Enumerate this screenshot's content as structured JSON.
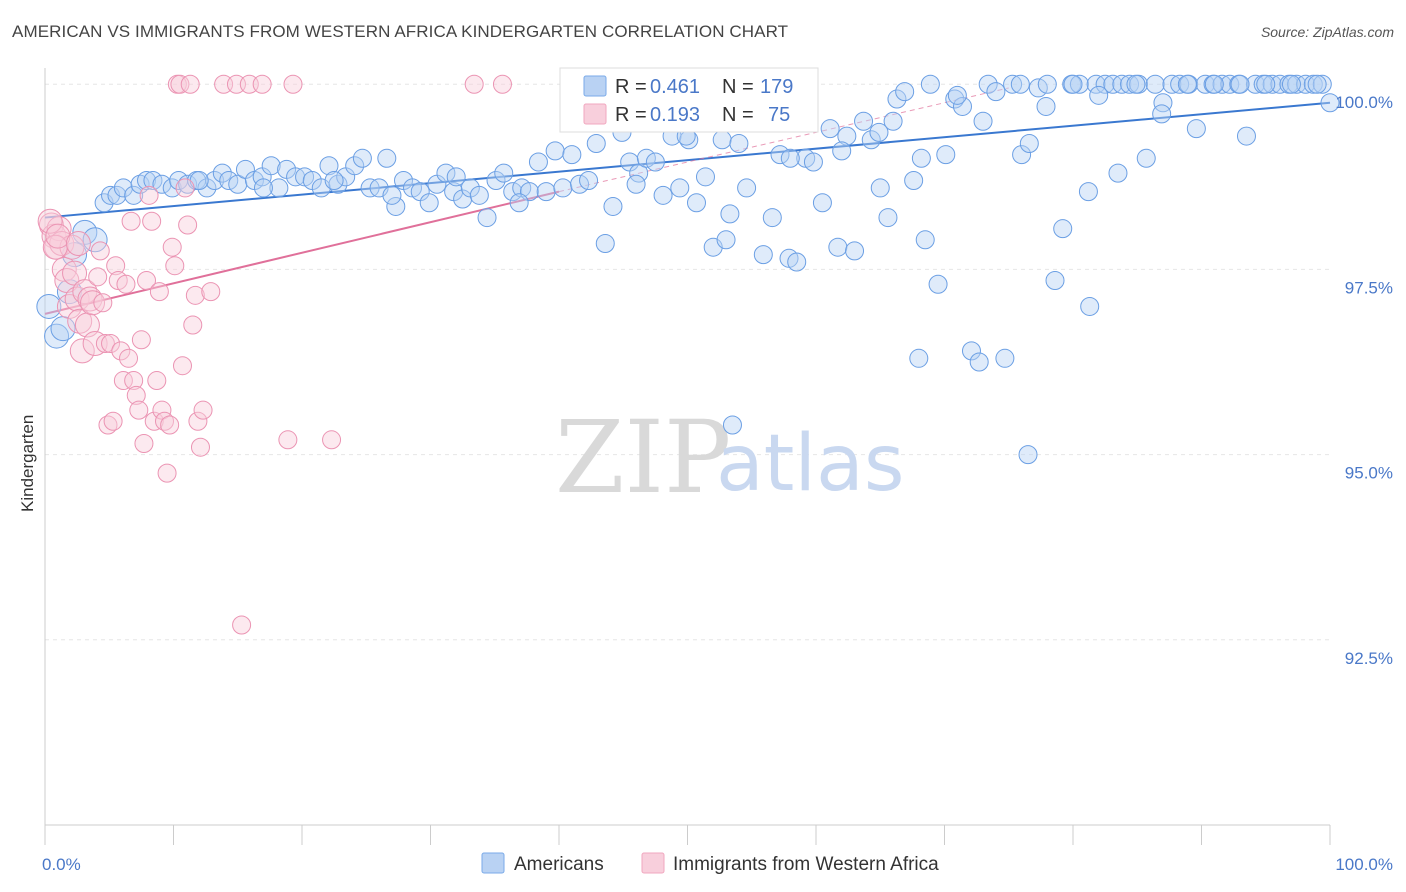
{
  "title": "AMERICAN VS IMMIGRANTS FROM WESTERN AFRICA KINDERGARTEN CORRELATION CHART",
  "source": "Source: ZipAtlas.com",
  "watermark": {
    "zip": "ZIP",
    "atlas": "atlas"
  },
  "legend_top": [
    {
      "r_label": "R = ",
      "r_value": "0.461",
      "n_label": "N = ",
      "n_value": "179",
      "color": "#7aaae8"
    },
    {
      "r_label": "R = ",
      "r_value": "0.193",
      "n_label": "N = ",
      "n_value": "75",
      "color": "#f1a7bf"
    }
  ],
  "legend_bottom": [
    {
      "label": "Americans",
      "color": "#7aaae8"
    },
    {
      "label": "Immigrants from Western Africa",
      "color": "#f1a7bf"
    }
  ],
  "chart_data": {
    "type": "scatter",
    "title": "AMERICAN VS IMMIGRANTS FROM WESTERN AFRICA KINDERGARTEN CORRELATION CHART",
    "ylabel": "Kindergarten",
    "xlabel": "",
    "xlim": [
      0,
      100
    ],
    "ylim": [
      90.0,
      100.3
    ],
    "x_tick_labels": [
      "0.0%",
      "100.0%"
    ],
    "y_ticks": [
      92.5,
      95.0,
      97.5,
      100.0
    ],
    "y_tick_labels": [
      "92.5%",
      "95.0%",
      "97.5%",
      "100.0%"
    ],
    "grid": true,
    "legend_placement": "top-center",
    "series": [
      {
        "name": "Americans",
        "color": "#7aaae8",
        "line_color": "#3a78d0",
        "trend": {
          "x": [
            0,
            100
          ],
          "y": [
            98.2,
            99.75
          ]
        },
        "points": [
          [
            0.3,
            97.0
          ],
          [
            0.9,
            96.6
          ],
          [
            1.4,
            96.7
          ],
          [
            1.9,
            97.2
          ],
          [
            2.3,
            97.7
          ],
          [
            3.1,
            98.0
          ],
          [
            3.9,
            97.9
          ],
          [
            4.6,
            98.4
          ],
          [
            5.1,
            98.5
          ],
          [
            5.6,
            98.5
          ],
          [
            6.1,
            98.6
          ],
          [
            6.9,
            98.5
          ],
          [
            7.4,
            98.65
          ],
          [
            7.9,
            98.7
          ],
          [
            8.4,
            98.7
          ],
          [
            9.1,
            98.65
          ],
          [
            9.9,
            98.6
          ],
          [
            10.4,
            98.7
          ],
          [
            11.1,
            98.65
          ],
          [
            11.8,
            98.7
          ],
          [
            12.6,
            98.6
          ],
          [
            13.2,
            98.7
          ],
          [
            13.8,
            98.8
          ],
          [
            14.3,
            98.7
          ],
          [
            15.0,
            98.65
          ],
          [
            15.6,
            98.85
          ],
          [
            16.3,
            98.7
          ],
          [
            16.9,
            98.75
          ],
          [
            17.6,
            98.9
          ],
          [
            18.2,
            98.6
          ],
          [
            18.8,
            98.85
          ],
          [
            19.5,
            98.75
          ],
          [
            20.2,
            98.75
          ],
          [
            20.8,
            98.7
          ],
          [
            21.5,
            98.6
          ],
          [
            22.1,
            98.9
          ],
          [
            22.8,
            98.65
          ],
          [
            23.4,
            98.75
          ],
          [
            24.1,
            98.9
          ],
          [
            24.7,
            99.0
          ],
          [
            25.3,
            98.6
          ],
          [
            26.0,
            98.6
          ],
          [
            26.6,
            99.0
          ],
          [
            27.3,
            98.35
          ],
          [
            27.9,
            98.7
          ],
          [
            28.6,
            98.6
          ],
          [
            29.2,
            98.55
          ],
          [
            29.9,
            98.4
          ],
          [
            30.5,
            98.65
          ],
          [
            31.2,
            98.8
          ],
          [
            31.8,
            98.55
          ],
          [
            32.5,
            98.45
          ],
          [
            33.1,
            98.6
          ],
          [
            33.8,
            98.5
          ],
          [
            34.4,
            98.2
          ],
          [
            35.1,
            98.7
          ],
          [
            35.7,
            98.8
          ],
          [
            36.4,
            98.55
          ],
          [
            37.1,
            98.6
          ],
          [
            37.7,
            98.55
          ],
          [
            38.4,
            98.95
          ],
          [
            39.0,
            98.55
          ],
          [
            39.7,
            99.1
          ],
          [
            40.3,
            98.6
          ],
          [
            41.0,
            99.05
          ],
          [
            41.6,
            98.65
          ],
          [
            42.3,
            98.7
          ],
          [
            42.9,
            99.2
          ],
          [
            43.6,
            97.85
          ],
          [
            44.2,
            98.35
          ],
          [
            44.9,
            99.35
          ],
          [
            45.5,
            98.95
          ],
          [
            46.2,
            98.8
          ],
          [
            46.8,
            99.0
          ],
          [
            47.5,
            98.95
          ],
          [
            48.1,
            98.5
          ],
          [
            48.8,
            99.3
          ],
          [
            49.4,
            98.6
          ],
          [
            50.1,
            99.25
          ],
          [
            50.7,
            98.4
          ],
          [
            51.4,
            98.75
          ],
          [
            52.0,
            97.8
          ],
          [
            52.7,
            99.25
          ],
          [
            53.3,
            98.25
          ],
          [
            54.0,
            99.2
          ],
          [
            54.6,
            98.6
          ],
          [
            55.3,
            99.5
          ],
          [
            55.9,
            97.7
          ],
          [
            56.6,
            98.2
          ],
          [
            57.2,
            99.05
          ],
          [
            57.9,
            97.65
          ],
          [
            58.5,
            97.6
          ],
          [
            59.2,
            99.0
          ],
          [
            59.8,
            98.95
          ],
          [
            60.5,
            98.4
          ],
          [
            61.1,
            99.4
          ],
          [
            61.7,
            97.8
          ],
          [
            62.4,
            99.3
          ],
          [
            63.0,
            97.75
          ],
          [
            63.7,
            99.5
          ],
          [
            64.3,
            99.25
          ],
          [
            65.0,
            98.6
          ],
          [
            65.6,
            98.2
          ],
          [
            66.3,
            99.8
          ],
          [
            66.9,
            99.9
          ],
          [
            67.6,
            98.7
          ],
          [
            68.2,
            99.0
          ],
          [
            68.9,
            100.0
          ],
          [
            69.5,
            97.3
          ],
          [
            70.1,
            99.05
          ],
          [
            70.8,
            99.8
          ],
          [
            71.4,
            99.7
          ],
          [
            72.1,
            96.4
          ],
          [
            72.7,
            96.25
          ],
          [
            73.4,
            100.0
          ],
          [
            74.0,
            99.9
          ],
          [
            74.7,
            96.3
          ],
          [
            75.3,
            100.0
          ],
          [
            76.0,
            99.05
          ],
          [
            76.6,
            99.2
          ],
          [
            77.3,
            99.95
          ],
          [
            77.9,
            99.7
          ],
          [
            78.6,
            97.35
          ],
          [
            79.2,
            98.05
          ],
          [
            79.9,
            100.0
          ],
          [
            80.5,
            100.0
          ],
          [
            81.2,
            98.55
          ],
          [
            81.8,
            100.0
          ],
          [
            82.5,
            100.0
          ],
          [
            83.1,
            100.0
          ],
          [
            83.8,
            100.0
          ],
          [
            84.4,
            100.0
          ],
          [
            85.1,
            100.0
          ],
          [
            85.7,
            99.0
          ],
          [
            86.4,
            100.0
          ],
          [
            87.0,
            99.75
          ],
          [
            87.7,
            100.0
          ],
          [
            88.3,
            100.0
          ],
          [
            89.0,
            100.0
          ],
          [
            89.6,
            99.4
          ],
          [
            90.3,
            100.0
          ],
          [
            90.9,
            100.0
          ],
          [
            91.6,
            100.0
          ],
          [
            92.2,
            100.0
          ],
          [
            92.9,
            100.0
          ],
          [
            93.5,
            99.3
          ],
          [
            94.2,
            100.0
          ],
          [
            94.8,
            100.0
          ],
          [
            95.5,
            100.0
          ],
          [
            96.1,
            100.0
          ],
          [
            96.8,
            100.0
          ],
          [
            97.4,
            100.0
          ],
          [
            98.1,
            100.0
          ],
          [
            98.7,
            100.0
          ],
          [
            99.4,
            100.0
          ],
          [
            100.0,
            99.75
          ],
          [
            12.0,
            98.7
          ],
          [
            17.0,
            98.6
          ],
          [
            22.5,
            98.7
          ],
          [
            27.0,
            98.5
          ],
          [
            32.0,
            98.75
          ],
          [
            36.9,
            98.4
          ],
          [
            46.0,
            98.65
          ],
          [
            49.9,
            99.3
          ],
          [
            53.0,
            97.9
          ],
          [
            58.0,
            99.0
          ],
          [
            62.0,
            99.1
          ],
          [
            64.9,
            99.35
          ],
          [
            66.0,
            99.5
          ],
          [
            68.5,
            97.9
          ],
          [
            71.0,
            99.85
          ],
          [
            73.0,
            99.5
          ],
          [
            75.9,
            100.0
          ],
          [
            78.0,
            100.0
          ],
          [
            80.0,
            100.0
          ],
          [
            82.0,
            99.85
          ],
          [
            84.9,
            100.0
          ],
          [
            86.9,
            99.6
          ],
          [
            88.9,
            100.0
          ],
          [
            91.0,
            100.0
          ],
          [
            93.0,
            100.0
          ],
          [
            95.0,
            100.0
          ],
          [
            97.0,
            100.0
          ],
          [
            99.0,
            100.0
          ],
          [
            68.0,
            96.3
          ],
          [
            76.5,
            95.0
          ],
          [
            81.3,
            97.0
          ],
          [
            83.5,
            98.8
          ],
          [
            53.5,
            95.4
          ]
        ]
      },
      {
        "name": "Immigrants from Western Africa",
        "color": "#f1a7bf",
        "line_color": "#e0709a",
        "trend": {
          "x": [
            0,
            40
          ],
          "y": [
            96.9,
            98.55
          ]
        },
        "trend_extension": {
          "x": [
            40,
            75
          ],
          "y": [
            98.55,
            99.95
          ]
        },
        "points": [
          [
            0.5,
            98.1
          ],
          [
            0.7,
            97.95
          ],
          [
            0.9,
            97.8
          ],
          [
            1.1,
            98.05
          ],
          [
            1.3,
            97.85
          ],
          [
            1.5,
            97.5
          ],
          [
            1.7,
            97.35
          ],
          [
            1.9,
            97.0
          ],
          [
            2.1,
            97.8
          ],
          [
            2.3,
            97.45
          ],
          [
            2.5,
            97.1
          ],
          [
            2.7,
            96.8
          ],
          [
            2.9,
            96.4
          ],
          [
            3.1,
            97.2
          ],
          [
            3.3,
            96.75
          ],
          [
            3.5,
            97.1
          ],
          [
            3.7,
            97.05
          ],
          [
            3.9,
            96.5
          ],
          [
            4.1,
            97.4
          ],
          [
            4.3,
            97.75
          ],
          [
            4.5,
            97.05
          ],
          [
            4.7,
            96.5
          ],
          [
            4.9,
            95.4
          ],
          [
            5.1,
            96.5
          ],
          [
            5.3,
            95.45
          ],
          [
            5.5,
            97.55
          ],
          [
            5.7,
            97.35
          ],
          [
            5.9,
            96.4
          ],
          [
            6.1,
            96.0
          ],
          [
            6.3,
            97.3
          ],
          [
            6.5,
            96.3
          ],
          [
            6.7,
            98.15
          ],
          [
            6.9,
            96.0
          ],
          [
            7.1,
            95.8
          ],
          [
            7.3,
            95.6
          ],
          [
            7.5,
            96.55
          ],
          [
            7.7,
            95.15
          ],
          [
            7.9,
            97.35
          ],
          [
            8.1,
            98.5
          ],
          [
            8.3,
            98.15
          ],
          [
            8.5,
            95.45
          ],
          [
            8.7,
            96.0
          ],
          [
            8.9,
            97.2
          ],
          [
            9.1,
            95.6
          ],
          [
            9.3,
            95.45
          ],
          [
            9.5,
            94.75
          ],
          [
            9.7,
            95.4
          ],
          [
            9.9,
            97.8
          ],
          [
            10.1,
            97.55
          ],
          [
            10.3,
            100.0
          ],
          [
            10.5,
            100.0
          ],
          [
            10.7,
            96.2
          ],
          [
            10.9,
            98.6
          ],
          [
            11.1,
            98.1
          ],
          [
            11.3,
            100.0
          ],
          [
            11.5,
            96.75
          ],
          [
            11.7,
            97.15
          ],
          [
            11.9,
            95.45
          ],
          [
            12.1,
            95.1
          ],
          [
            12.3,
            95.6
          ],
          [
            12.9,
            97.2
          ],
          [
            13.9,
            100.0
          ],
          [
            14.9,
            100.0
          ],
          [
            15.3,
            92.7
          ],
          [
            15.9,
            100.0
          ],
          [
            16.9,
            100.0
          ],
          [
            18.9,
            95.2
          ],
          [
            19.3,
            100.0
          ],
          [
            22.3,
            95.2
          ],
          [
            33.4,
            100.0
          ],
          [
            35.6,
            100.0
          ],
          [
            0.4,
            98.15
          ],
          [
            0.8,
            97.8
          ],
          [
            1.0,
            97.95
          ],
          [
            2.6,
            97.85
          ]
        ]
      }
    ]
  }
}
